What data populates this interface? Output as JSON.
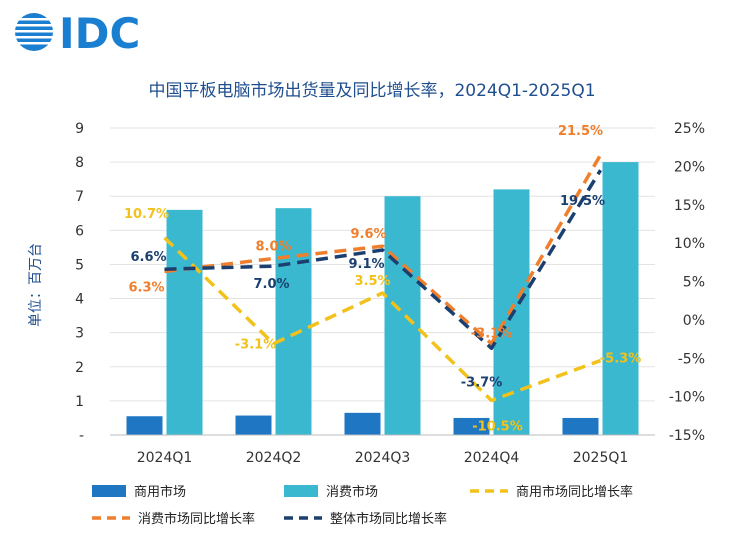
{
  "logo": {
    "text": "IDC"
  },
  "chart_data": {
    "type": "bar",
    "title": "中国平板电脑市场出货量及同比增长率，2024Q1-2025Q1",
    "ylabel": "单位：百万台",
    "categories": [
      "2024Q1",
      "2024Q2",
      "2024Q3",
      "2024Q4",
      "2025Q1"
    ],
    "left_axis": {
      "ylim": [
        0,
        9
      ],
      "tick_labels": [
        "-",
        "1",
        "2",
        "3",
        "4",
        "5",
        "6",
        "7",
        "8",
        "9"
      ]
    },
    "right_axis": {
      "ylim": [
        -15,
        25
      ],
      "tick_labels": [
        "-15%",
        "-10%",
        "-5%",
        "0%",
        "5%",
        "10%",
        "15%",
        "20%",
        "25%"
      ]
    },
    "bar_series": [
      {
        "name": "商用市场",
        "color": "#1f77c4",
        "values": [
          0.55,
          0.57,
          0.65,
          0.5,
          0.5
        ]
      },
      {
        "name": "消费市场",
        "color": "#3ab8d0",
        "values": [
          6.6,
          6.65,
          7.0,
          7.2,
          8.0
        ]
      }
    ],
    "line_series": [
      {
        "name": "商用市场同比增长率",
        "color": "#f2c21a",
        "values": [
          10.7,
          -3.1,
          3.5,
          -10.5,
          -5.3
        ],
        "labels": [
          "10.7%",
          "-3.1%",
          "3.5%",
          "-10.5%",
          "-5.3%"
        ]
      },
      {
        "name": "消费市场同比增长率",
        "color": "#ef7f2c",
        "values": [
          6.3,
          8.0,
          9.6,
          -3.1,
          21.5
        ],
        "labels": [
          "6.3%",
          "8.0%",
          "9.6%",
          "-3.1%",
          "21.5%"
        ]
      },
      {
        "name": "整体市场同比增长率",
        "color": "#1b3f6e",
        "values": [
          6.6,
          7.0,
          9.1,
          -3.7,
          19.5
        ],
        "labels": [
          "6.6%",
          "7.0%",
          "9.1%",
          "-3.7%",
          "19.5%"
        ]
      }
    ],
    "legend": [
      "商用市场",
      "消费市场",
      "商用市场同比增长率",
      "消费市场同比增长率",
      "整体市场同比增长率"
    ]
  }
}
